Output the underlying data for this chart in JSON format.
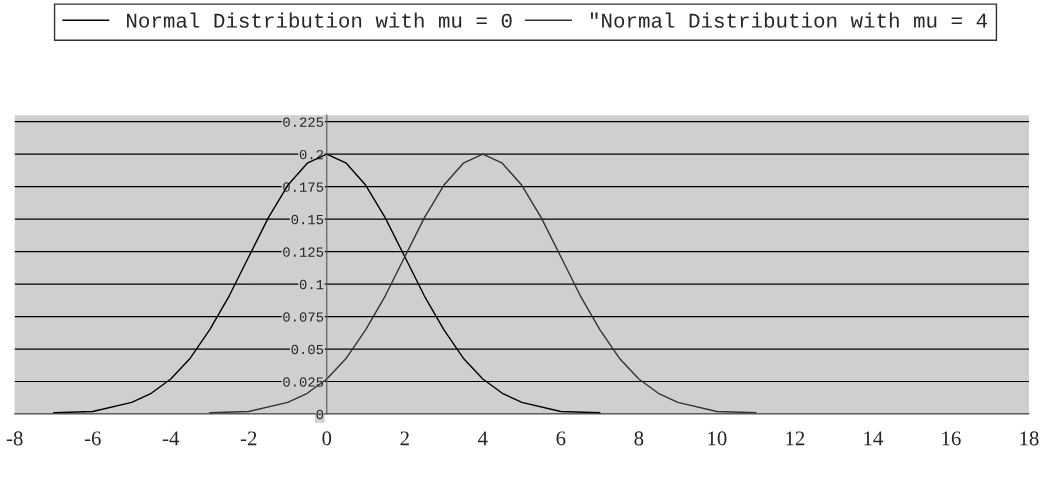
{
  "chart_data": {
    "type": "line",
    "series": [
      {
        "name": "Normal Distribution with mu = 0",
        "color": "#000000",
        "x": [
          -7,
          -6,
          -5,
          -4.5,
          -4,
          -3.5,
          -3,
          -2.5,
          -2,
          -1.5,
          -1,
          -0.5,
          0,
          0.5,
          1,
          1.5,
          2,
          2.5,
          3,
          3.5,
          4,
          4.5,
          5,
          6,
          7
        ],
        "values": [
          0.001,
          0.002,
          0.009,
          0.016,
          0.027,
          0.043,
          0.065,
          0.091,
          0.121,
          0.151,
          0.176,
          0.193,
          0.2,
          0.193,
          0.176,
          0.151,
          0.121,
          0.091,
          0.065,
          0.043,
          0.027,
          0.016,
          0.009,
          0.002,
          0.001
        ]
      },
      {
        "name": "\"Normal Distribution with mu = 4",
        "color": "#333333",
        "x": [
          -3,
          -2,
          -1,
          -0.5,
          0,
          0.5,
          1,
          1.5,
          2,
          2.5,
          3,
          3.5,
          4,
          4.5,
          5,
          5.5,
          6,
          6.5,
          7,
          7.5,
          8,
          8.5,
          9,
          10,
          11
        ],
        "values": [
          0.001,
          0.002,
          0.009,
          0.016,
          0.027,
          0.043,
          0.065,
          0.091,
          0.121,
          0.151,
          0.176,
          0.193,
          0.2,
          0.193,
          0.176,
          0.151,
          0.121,
          0.091,
          0.065,
          0.043,
          0.027,
          0.016,
          0.009,
          0.002,
          0.001
        ]
      }
    ],
    "xlim": [
      -8,
      18
    ],
    "xticks": [
      -8,
      -6,
      -4,
      -2,
      0,
      2,
      4,
      6,
      8,
      10,
      12,
      14,
      16,
      18
    ],
    "ylim": [
      0,
      0.23
    ],
    "yticks": [
      0,
      0.025,
      0.05,
      0.075,
      0.1,
      0.125,
      0.15,
      0.175,
      0.2,
      0.225
    ],
    "grid": "y",
    "legend": "top",
    "marker": "none",
    "line_style": "solid"
  }
}
